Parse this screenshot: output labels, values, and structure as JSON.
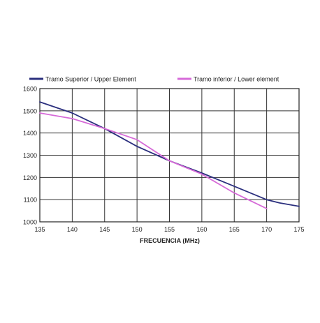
{
  "chart_data": {
    "type": "line",
    "title": "",
    "xlabel": "FRECUENCIA (MHz)",
    "ylabel": "",
    "xlim": [
      135,
      175
    ],
    "ylim": [
      1000,
      1600
    ],
    "x_ticks": [
      135,
      140,
      145,
      150,
      155,
      160,
      165,
      170,
      175
    ],
    "y_ticks": [
      1000,
      1100,
      1200,
      1300,
      1400,
      1500,
      1600
    ],
    "x_tick_labels": [
      "135",
      "140",
      "145",
      "150",
      "155",
      "160",
      "165",
      "170",
      "175"
    ],
    "y_tick_labels": [
      "1000",
      "1100",
      "1200",
      "1300",
      "1400",
      "1500",
      "1600"
    ],
    "grid": true,
    "legend_placement": "top",
    "series": [
      {
        "name": "Tramo Superior / Upper Element",
        "color": "#2b2f7e",
        "x": [
          135,
          140,
          145,
          150,
          155,
          160,
          165,
          170,
          172,
          175
        ],
        "y": [
          1540,
          1490,
          1420,
          1340,
          1275,
          1220,
          1160,
          1100,
          1085,
          1070
        ]
      },
      {
        "name": "Tramo inferior / Lower element",
        "color": "#d66ad8",
        "x": [
          135,
          140,
          145,
          150,
          155,
          160,
          165,
          170
        ],
        "y": [
          1490,
          1465,
          1420,
          1370,
          1275,
          1215,
          1130,
          1060
        ]
      }
    ]
  }
}
